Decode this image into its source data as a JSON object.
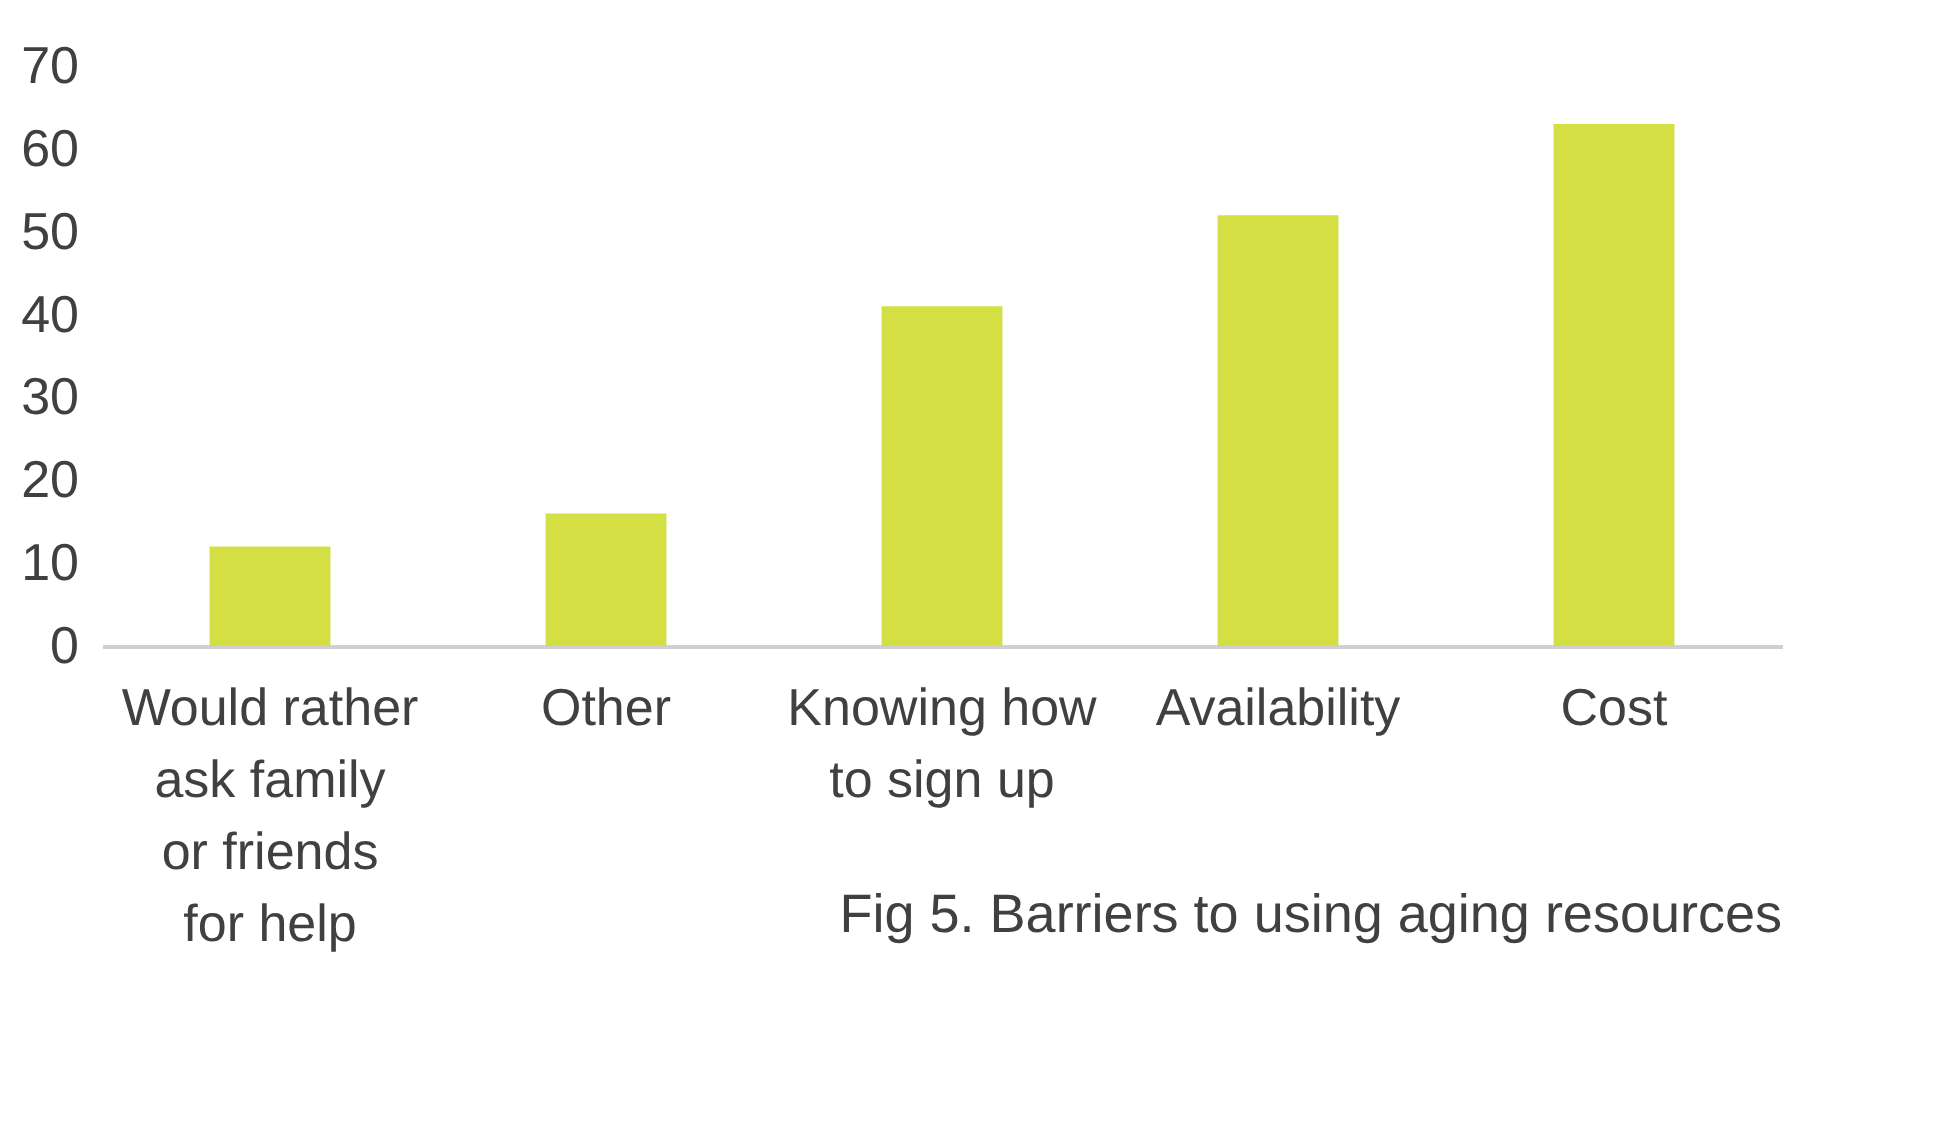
{
  "chart_data": {
    "type": "bar",
    "categories": [
      "Would rather ask family or friends for help",
      "Other",
      "Knowing how to sign up",
      "Availability",
      "Cost"
    ],
    "values": [
      12,
      16,
      41,
      52,
      63
    ],
    "color": "#d4df44",
    "ylim": [
      0,
      70
    ],
    "yticks": [
      0,
      10,
      20,
      30,
      40,
      50,
      60,
      70
    ],
    "grid": false,
    "annotations": [
      "Fig 5. Barriers to using aging resources"
    ]
  }
}
